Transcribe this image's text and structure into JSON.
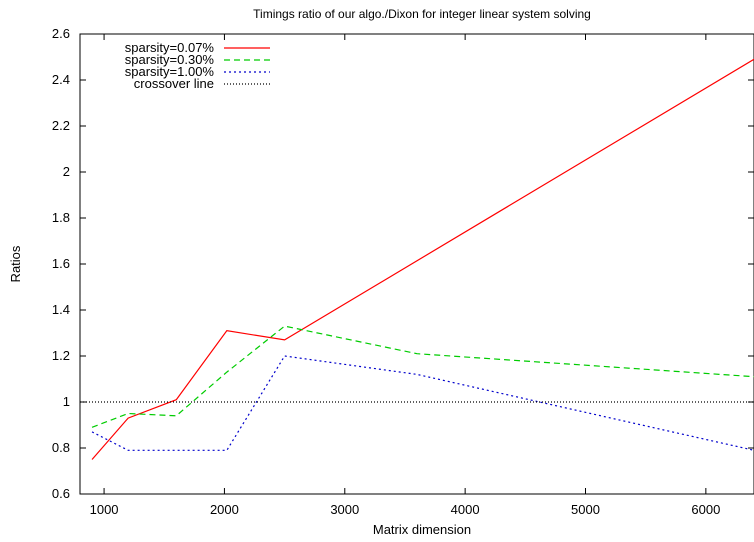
{
  "chart_data": {
    "type": "line",
    "title": "Timings ratio of  our algo./Dixon for integer linear system solving",
    "xlabel": "Matrix dimension",
    "ylabel": "Ratios",
    "xlim": [
      800,
      6400
    ],
    "ylim": [
      0.6,
      2.6
    ],
    "x_ticks": [
      1000,
      2000,
      3000,
      4000,
      5000,
      6000
    ],
    "y_ticks": [
      0.6,
      0.8,
      1,
      1.2,
      1.4,
      1.6,
      1.8,
      2,
      2.2,
      2.4,
      2.6
    ],
    "x_tick_labels": [
      "1000",
      "2000",
      "3000",
      "4000",
      "5000",
      "6000"
    ],
    "y_tick_labels": [
      "0.6",
      "0.8",
      "1",
      "1.2",
      "1.4",
      "1.6",
      "1.8",
      "2",
      "2.2",
      "2.4",
      "2.6"
    ],
    "legend_position": "top-left",
    "grid": false,
    "series": [
      {
        "name": "sparsity=0.07%",
        "color": "#ff0000",
        "dash": "solid",
        "points": [
          [
            900,
            0.75
          ],
          [
            1200,
            0.93
          ],
          [
            1600,
            1.01
          ],
          [
            2020,
            1.31
          ],
          [
            2500,
            1.27
          ],
          [
            6400,
            2.49
          ]
        ]
      },
      {
        "name": "sparsity=0.30%",
        "color": "#00cc00",
        "dash": "dashed",
        "points": [
          [
            900,
            0.89
          ],
          [
            1200,
            0.95
          ],
          [
            1600,
            0.94
          ],
          [
            2020,
            1.13
          ],
          [
            2500,
            1.33
          ],
          [
            3600,
            1.21
          ],
          [
            6400,
            1.11
          ]
        ]
      },
      {
        "name": "sparsity=1.00%",
        "color": "#0000cc",
        "dash": "dotted",
        "points": [
          [
            900,
            0.87
          ],
          [
            1200,
            0.79
          ],
          [
            1600,
            0.79
          ],
          [
            2020,
            0.79
          ],
          [
            2500,
            1.2
          ],
          [
            3600,
            1.12
          ],
          [
            6400,
            0.79
          ]
        ]
      },
      {
        "name": "crossover line",
        "color": "#000000",
        "dash": "fine-dotted",
        "points": [
          [
            800,
            1
          ],
          [
            6400,
            1
          ]
        ]
      }
    ]
  }
}
